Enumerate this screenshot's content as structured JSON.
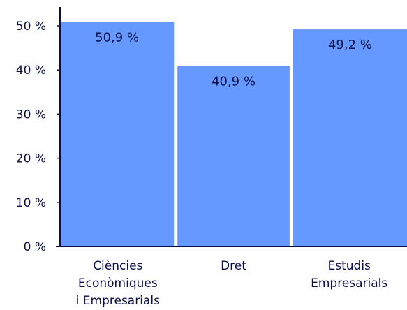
{
  "chart_data": {
    "type": "bar",
    "categories": [
      [
        "Ciències",
        "Econòmiques",
        "i Empresarials"
      ],
      [
        "Dret"
      ],
      [
        "Estudis",
        "Empresarials"
      ]
    ],
    "values": [
      50.9,
      40.9,
      49.2
    ],
    "data_labels": [
      "50,9 %",
      "40,9 %",
      "49,2 %"
    ],
    "title": "",
    "xlabel": "",
    "ylabel": "",
    "ylim": [
      0,
      50
    ],
    "y_ticks": [
      0,
      10,
      20,
      30,
      40,
      50
    ],
    "y_tick_labels": [
      "0 %",
      "10 %",
      "20 %",
      "30 %",
      "40 %",
      "50 %"
    ],
    "grid": false,
    "legend": "none",
    "colors": {
      "bar": "#6699ff",
      "axis": "#0a0f4a",
      "text": "#0a0f4a"
    }
  }
}
